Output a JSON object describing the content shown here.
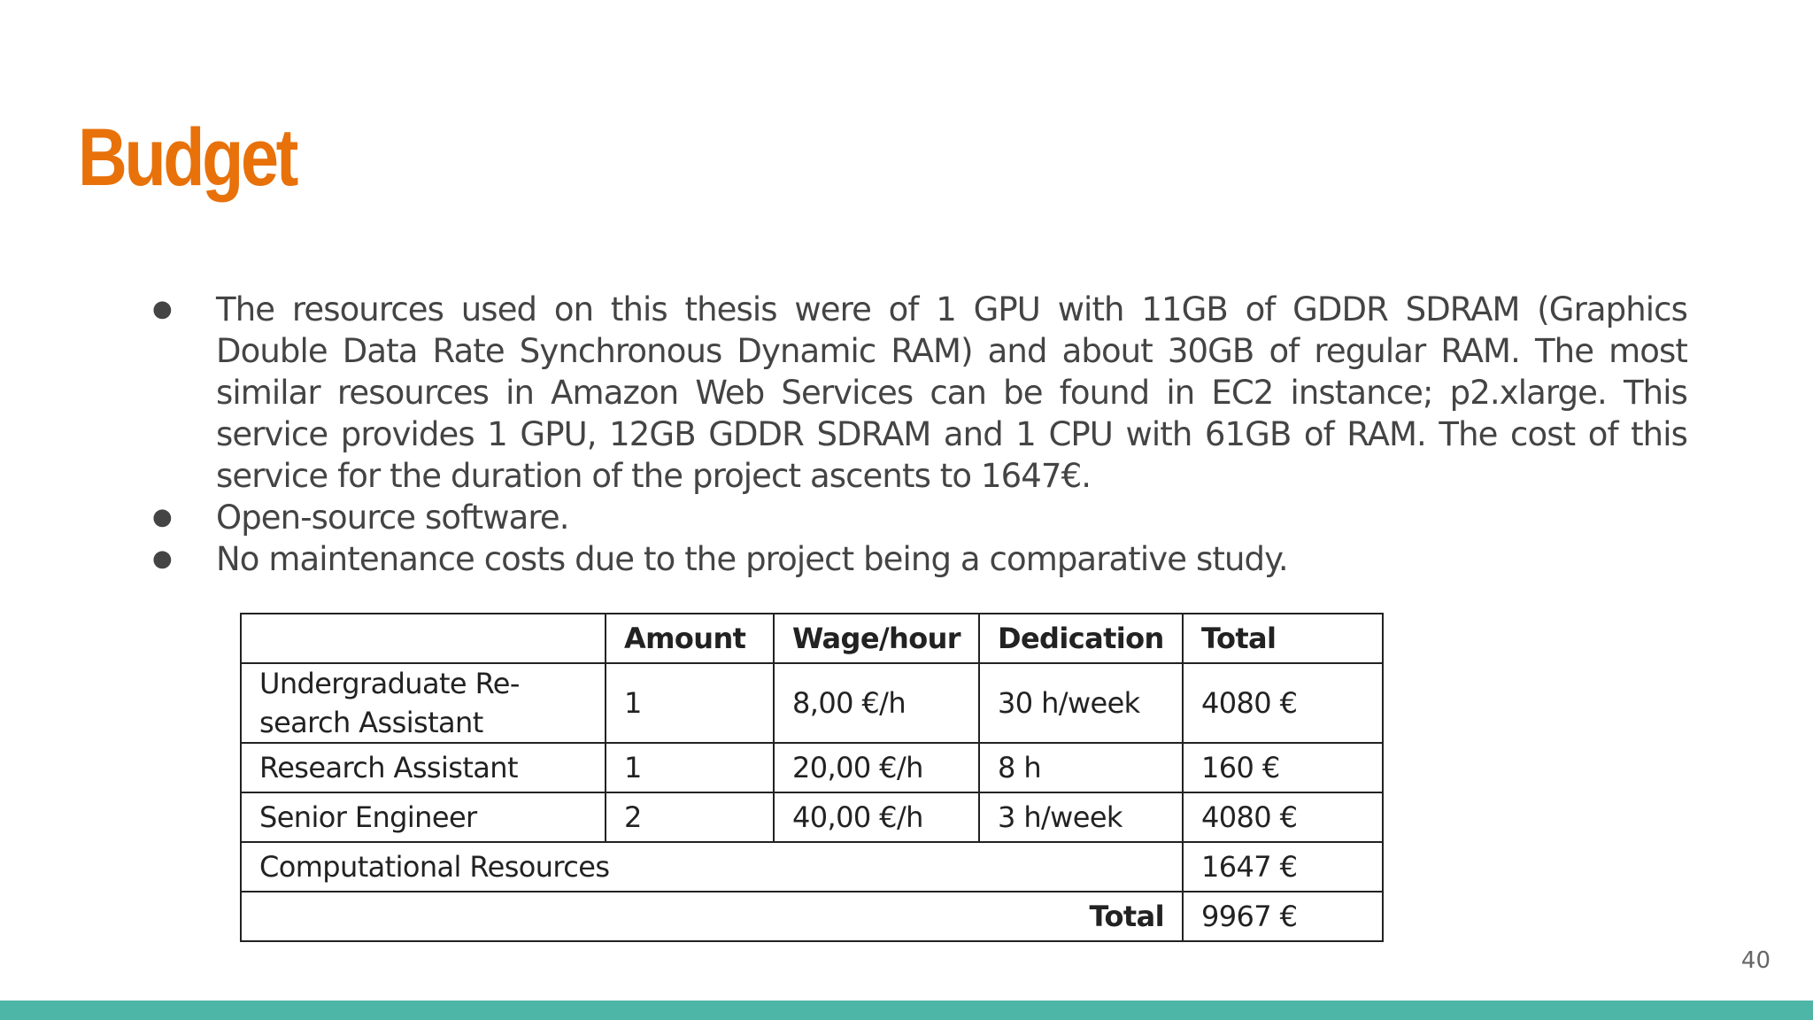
{
  "slide": {
    "title": "Budget",
    "page_number": "40",
    "accent_color": "#e8710a",
    "footer_color": "#4db6a7"
  },
  "bullets": [
    {
      "marker": "●",
      "text": "The resources used on this thesis were of 1 GPU with 11GB of GDDR SDRAM (Graphics Double Data Rate Synchronous Dynamic RAM) and about 30GB of regular RAM. The most similar resources in Amazon Web Services can be found in EC2 instance; p2.xlarge. This service provides 1 GPU, 12GB GDDR SDRAM and 1 CPU with 61GB of RAM. The cost of this service for the duration of the project ascents to 1647€."
    },
    {
      "marker": "●",
      "text": "Open-source software."
    },
    {
      "marker": "●",
      "text": "No maintenance costs due to the project being a comparative study."
    }
  ],
  "table": {
    "headers": [
      "",
      "Amount",
      "Wage/hour",
      "Dedication",
      "Total"
    ],
    "rows": [
      {
        "role": "Undergraduate Re- search Assistant",
        "amount": "1",
        "wage": "8,00 €/h",
        "dedication": "30 h/week",
        "total": "4080 €"
      },
      {
        "role": "Research Assistant",
        "amount": "1",
        "wage": "20,00 €/h",
        "dedication": "8 h",
        "total": "160 €"
      },
      {
        "role": "Senior Engineer",
        "amount": "2",
        "wage": "40,00 €/h",
        "dedication": "3 h/week",
        "total": "4080 €"
      }
    ],
    "computational": {
      "label": "Computational Resources",
      "total": "1647 €"
    },
    "grand_total": {
      "label": "Total",
      "total": "9967 €"
    }
  }
}
